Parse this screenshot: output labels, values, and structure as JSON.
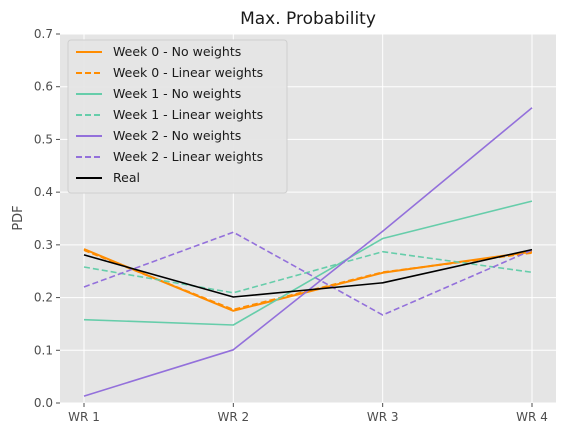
{
  "chart_data": {
    "type": "line",
    "title": "Max. Probability",
    "xlabel": "",
    "ylabel": "PDF",
    "categories": [
      "WR 1",
      "WR 2",
      "WR 3",
      "WR 4"
    ],
    "ylim": [
      0,
      0.7
    ],
    "yticks": [
      "0.0",
      "0.1",
      "0.2",
      "0.3",
      "0.4",
      "0.5",
      "0.6",
      "0.7"
    ],
    "grid": true,
    "legend_position": "top-left",
    "series": [
      {
        "name": "Week 0 - No weights",
        "values": [
          0.292,
          0.175,
          0.247,
          0.287
        ],
        "color": "#ff8c00",
        "dash": "solid"
      },
      {
        "name": "Week 0 - Linear weights",
        "values": [
          0.29,
          0.177,
          0.248,
          0.285
        ],
        "color": "#ff8c00",
        "dash": "dashed"
      },
      {
        "name": "Week 1 - No weights",
        "values": [
          0.158,
          0.148,
          0.312,
          0.383
        ],
        "color": "#66cdaa",
        "dash": "solid"
      },
      {
        "name": "Week 1 - Linear weights",
        "values": [
          0.258,
          0.209,
          0.287,
          0.248
        ],
        "color": "#66cdaa",
        "dash": "dashed"
      },
      {
        "name": "Week 2 - No weights",
        "values": [
          0.013,
          0.101,
          0.326,
          0.56
        ],
        "color": "#9370db",
        "dash": "solid"
      },
      {
        "name": "Week 2 - Linear weights",
        "values": [
          0.22,
          0.324,
          0.167,
          0.29
        ],
        "color": "#9370db",
        "dash": "dashed"
      },
      {
        "name": "Real",
        "values": [
          0.281,
          0.201,
          0.228,
          0.291
        ],
        "color": "#000000",
        "dash": "solid"
      }
    ]
  }
}
